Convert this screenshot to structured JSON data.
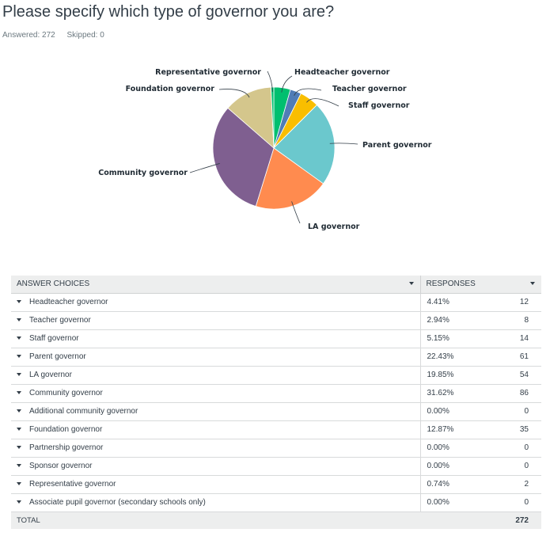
{
  "question": {
    "title": "Please specify which type of governor you are?",
    "answered": "Answered: 272",
    "skipped": "Skipped: 0"
  },
  "table": {
    "header_choices": "ANSWER CHOICES",
    "header_responses": "RESPONSES",
    "rows": [
      {
        "label": "Headteacher governor",
        "percent": "4.41%",
        "count": "12"
      },
      {
        "label": "Teacher governor",
        "percent": "2.94%",
        "count": "8"
      },
      {
        "label": "Staff governor",
        "percent": "5.15%",
        "count": "14"
      },
      {
        "label": "Parent governor",
        "percent": "22.43%",
        "count": "61"
      },
      {
        "label": "LA governor",
        "percent": "19.85%",
        "count": "54"
      },
      {
        "label": "Community governor",
        "percent": "31.62%",
        "count": "86"
      },
      {
        "label": "Additional community governor",
        "percent": "0.00%",
        "count": "0"
      },
      {
        "label": "Foundation governor",
        "percent": "12.87%",
        "count": "35"
      },
      {
        "label": "Partnership governor",
        "percent": "0.00%",
        "count": "0"
      },
      {
        "label": "Sponsor governor",
        "percent": "0.00%",
        "count": "0"
      },
      {
        "label": "Representative governor",
        "percent": "0.74%",
        "count": "2"
      },
      {
        "label": "Associate pupil governor (secondary schools only)",
        "percent": "0.00%",
        "count": "0"
      }
    ],
    "total_label": "TOTAL",
    "total_count": "272"
  },
  "chart_data": {
    "type": "pie",
    "categories": [
      "Headteacher governor",
      "Teacher governor",
      "Staff governor",
      "Parent governor",
      "LA governor",
      "Community governor",
      "Foundation governor",
      "Representative governor"
    ],
    "values": [
      12,
      8,
      14,
      61,
      54,
      86,
      35,
      2
    ],
    "colors": [
      "#00bf6f",
      "#507cb6",
      "#f9be00",
      "#6bc8cd",
      "#ff8b4f",
      "#7f5f90",
      "#d4c68c",
      "#00bf6f"
    ],
    "legend": "none"
  }
}
